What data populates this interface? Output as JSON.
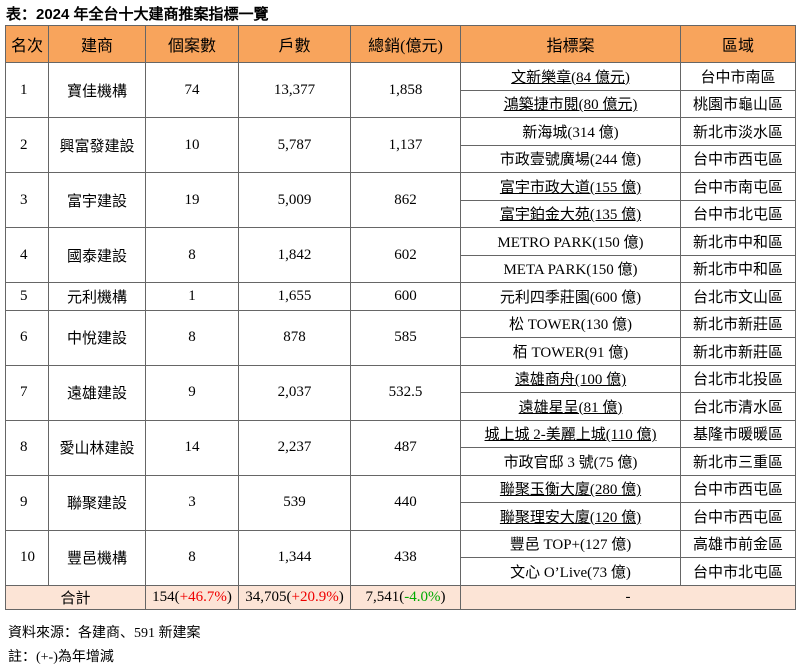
{
  "header": {
    "title": "表：2024 年全台十大建商推案指標一覽"
  },
  "table": {
    "columns": [
      "名次",
      "建商",
      "個案數",
      "戶數",
      "總銷(億元)",
      "指標案",
      "區域"
    ],
    "rows": [
      {
        "rank": "1",
        "company": "寶佳機構",
        "count": "74",
        "units": "13,377",
        "sales": "1,858",
        "projects": [
          {
            "name": "文新樂章(84 億元)",
            "area": "台中市南區",
            "underlined": true
          },
          {
            "name": "鴻築捷市閱(80 億元)",
            "area": "桃園市龜山區",
            "underlined": true
          }
        ]
      },
      {
        "rank": "2",
        "company": "興富發建設",
        "count": "10",
        "units": "5,787",
        "sales": "1,137",
        "projects": [
          {
            "name": "新海城(314 億)",
            "area": "新北市淡水區",
            "underlined": false
          },
          {
            "name": "市政壹號廣場(244 億)",
            "area": "台中市西屯區",
            "underlined": false
          }
        ]
      },
      {
        "rank": "3",
        "company": "富宇建設",
        "count": "19",
        "units": "5,009",
        "sales": "862",
        "projects": [
          {
            "name": "富宇市政大道(155 億)",
            "area": "台中市南屯區",
            "underlined": true
          },
          {
            "name": "富宇鉑金大苑(135 億)",
            "area": "台中市北屯區",
            "underlined": true
          }
        ]
      },
      {
        "rank": "4",
        "company": "國泰建設",
        "count": "8",
        "units": "1,842",
        "sales": "602",
        "projects": [
          {
            "name": "METRO PARK(150 億)",
            "area": "新北市中和區",
            "underlined": false
          },
          {
            "name": "META PARK(150 億)",
            "area": "新北市中和區",
            "underlined": false
          }
        ]
      },
      {
        "rank": "5",
        "company": "元利機構",
        "count": "1",
        "units": "1,655",
        "sales": "600",
        "projects": [
          {
            "name": "元利四季莊園(600 億)",
            "area": "台北市文山區",
            "underlined": false
          }
        ]
      },
      {
        "rank": "6",
        "company": "中悅建設",
        "count": "8",
        "units": "878",
        "sales": "585",
        "projects": [
          {
            "name": "松 TOWER(130 億)",
            "area": "新北市新莊區",
            "underlined": false
          },
          {
            "name": "栢 TOWER(91 億)",
            "area": "新北市新莊區",
            "underlined": false
          }
        ]
      },
      {
        "rank": "7",
        "company": "遠雄建設",
        "count": "9",
        "units": "2,037",
        "sales": "532.5",
        "projects": [
          {
            "name": "遠雄商舟(100 億)",
            "area": "台北市北投區",
            "underlined": true
          },
          {
            "name": "遠雄星呈(81 億)",
            "area": "台北市清水區",
            "underlined": true
          }
        ]
      },
      {
        "rank": "8",
        "company": "愛山林建設",
        "count": "14",
        "units": "2,237",
        "sales": "487",
        "projects": [
          {
            "name": "城上城 2-美麗上城(110 億)",
            "area": "基隆市暖暖區",
            "underlined": true
          },
          {
            "name": "市政官邸 3 號(75 億)",
            "area": "新北市三重區",
            "underlined": false
          }
        ]
      },
      {
        "rank": "9",
        "company": "聯聚建設",
        "count": "3",
        "units": "539",
        "sales": "440",
        "projects": [
          {
            "name": "聯聚玉衡大廈(280 億)",
            "area": "台中市西屯區",
            "underlined": true
          },
          {
            "name": "聯聚理安大廈(120 億)",
            "area": "台中市西屯區",
            "underlined": true
          }
        ]
      },
      {
        "rank": "10",
        "company": "豐邑機構",
        "count": "8",
        "units": "1,344",
        "sales": "438",
        "projects": [
          {
            "name": "豐邑 TOP+(127 億)",
            "area": "高雄市前金區",
            "underlined": false
          },
          {
            "name": "文心 O’Live(73 億)",
            "area": "台中市北屯區",
            "underlined": false
          }
        ]
      }
    ],
    "total": {
      "label": "合計",
      "count": {
        "base": "154(",
        "change": "+46.7%",
        "close": ")"
      },
      "units": {
        "base": "34,705(",
        "change": "+20.9%",
        "close": ")"
      },
      "sales": {
        "base": "7,541(",
        "change": "-4.0%",
        "close": ")"
      },
      "rest": "-"
    }
  },
  "footer": {
    "source": "資料來源：各建商、591 新建案",
    "note": "註：(+-)為年增減"
  }
}
